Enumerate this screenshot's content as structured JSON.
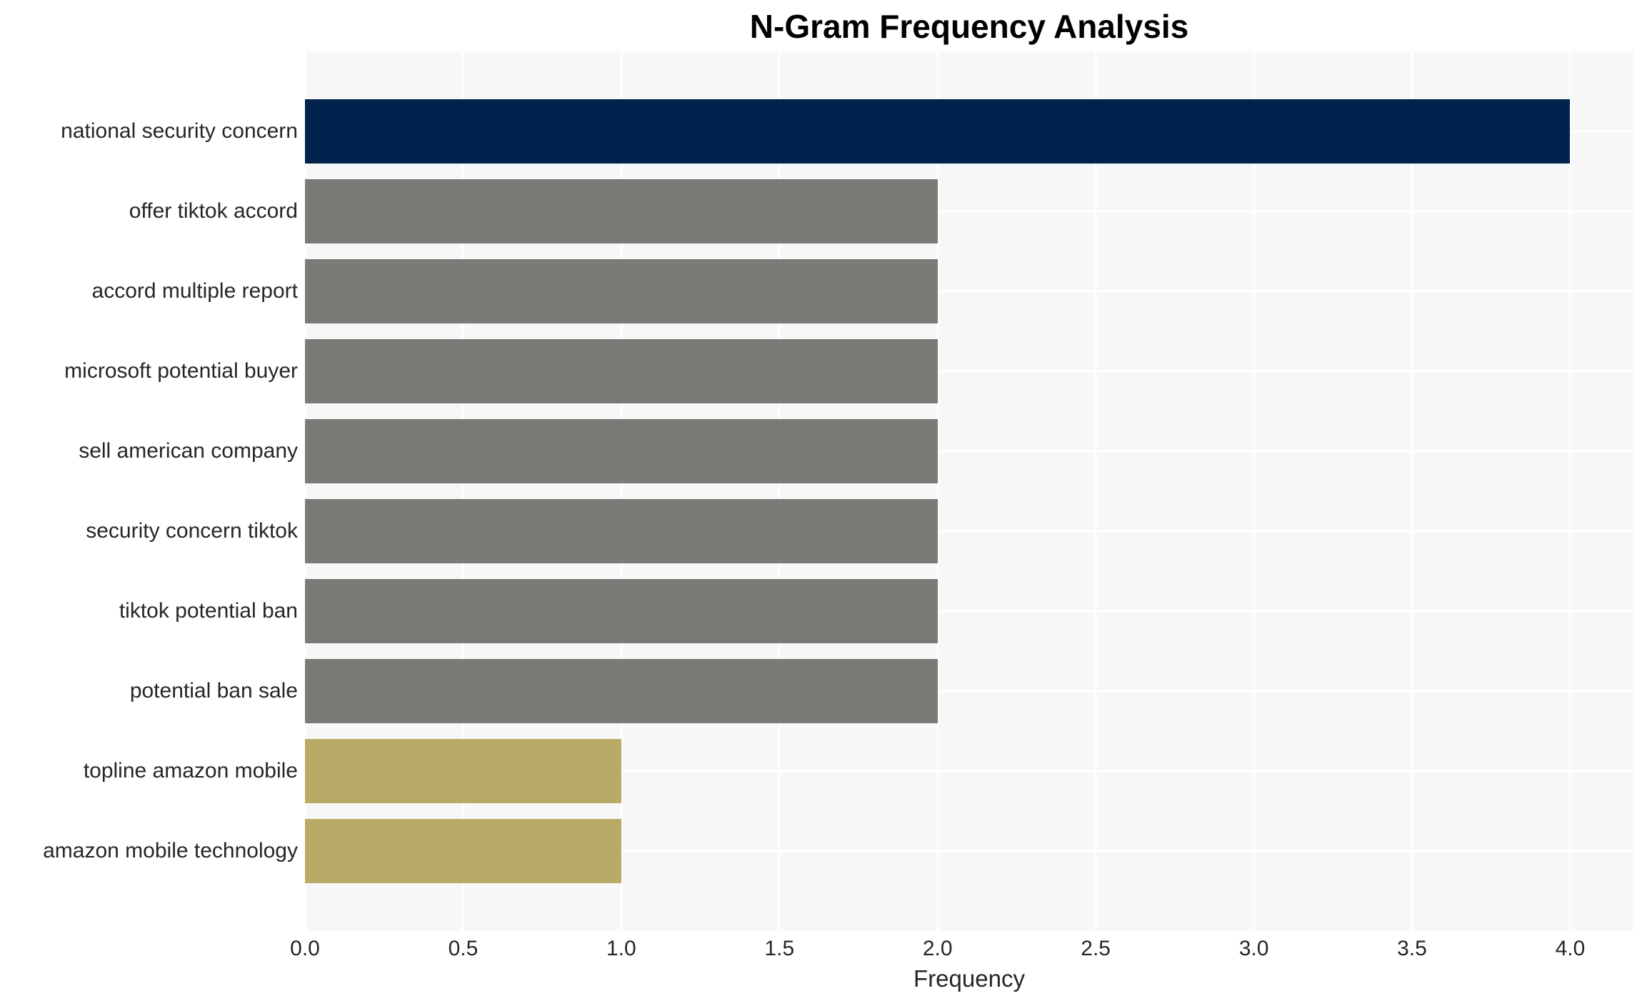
{
  "chart_data": {
    "type": "bar",
    "orientation": "horizontal",
    "title": "N-Gram Frequency Analysis",
    "xlabel": "Frequency",
    "ylabel": "",
    "categories": [
      "national security concern",
      "offer tiktok accord",
      "accord multiple report",
      "microsoft potential buyer",
      "sell american company",
      "security concern tiktok",
      "tiktok potential ban",
      "potential ban sale",
      "topline amazon mobile",
      "amazon mobile technology"
    ],
    "values": [
      4,
      2,
      2,
      2,
      2,
      2,
      2,
      2,
      1,
      1
    ],
    "bar_colors": [
      "#00224d",
      "#7b7a77",
      "#7b7a77",
      "#7b7a77",
      "#7b7a77",
      "#7b7a77",
      "#7b7a77",
      "#7b7a77",
      "#b8ab68",
      "#b8ab68"
    ],
    "xlim": [
      0,
      4.2
    ],
    "xticks": [
      0.0,
      0.5,
      1.0,
      1.5,
      2.0,
      2.5,
      3.0,
      3.5,
      4.0
    ],
    "xtick_labels": [
      "0.0",
      "0.5",
      "1.0",
      "1.5",
      "2.0",
      "2.5",
      "3.0",
      "3.5",
      "4.0"
    ],
    "grid": true,
    "legend_position": "none",
    "plot_background": "#f7f7f7",
    "grid_color": "#ffffff",
    "page_background": "#ffffff",
    "title_color": "#000000",
    "tick_color": "#262626"
  }
}
